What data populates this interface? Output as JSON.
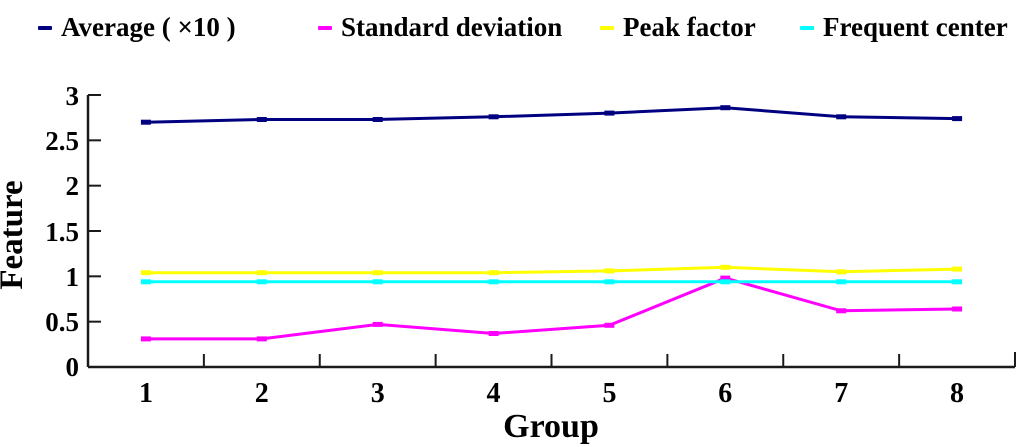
{
  "chart_data": {
    "type": "line",
    "title": "",
    "xlabel": "Group",
    "ylabel": "Feature",
    "categories": [
      "1",
      "2",
      "3",
      "4",
      "5",
      "6",
      "7",
      "8"
    ],
    "ytick_labels_top_down": [
      "3",
      "2.5",
      "2",
      "1.5",
      "1",
      "0.5",
      "0"
    ],
    "ylim": [
      0,
      3
    ],
    "xlim_categories": [
      1,
      8
    ],
    "grid": false,
    "legend_position": "top",
    "background_color": "#ffffff",
    "axis_color": "#1a1a1a",
    "text_color": "#000000",
    "series": [
      {
        "name": "Average ( ×10 )",
        "color": "#000080",
        "marker": "dash",
        "values": [
          2.7,
          2.73,
          2.73,
          2.76,
          2.8,
          2.86,
          2.76,
          2.74
        ]
      },
      {
        "name": "Standard deviation",
        "color": "#ff00ff",
        "marker": "dash",
        "values": [
          0.31,
          0.31,
          0.47,
          0.37,
          0.46,
          0.98,
          0.62,
          0.64
        ]
      },
      {
        "name": "Peak factor",
        "color": "#ffff00",
        "marker": "dash",
        "values": [
          1.04,
          1.04,
          1.04,
          1.04,
          1.06,
          1.1,
          1.05,
          1.08
        ]
      },
      {
        "name": "Frequent center",
        "color": "#00ffff",
        "marker": "dash",
        "values": [
          0.94,
          0.94,
          0.94,
          0.94,
          0.94,
          0.94,
          0.94,
          0.94
        ]
      }
    ]
  }
}
